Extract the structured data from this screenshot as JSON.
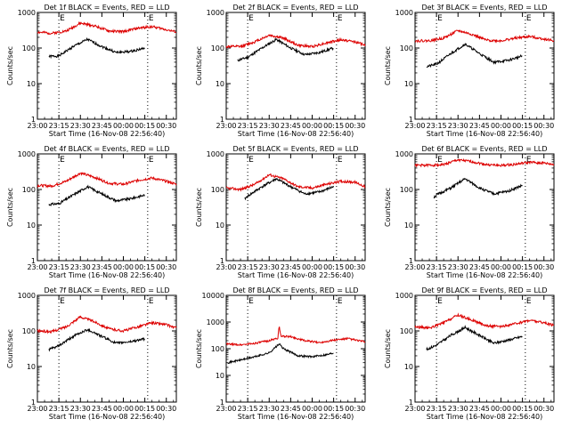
{
  "page": {
    "title_template": "Det {d}f BLACK = Events, RED = LLD",
    "ylabel": "Counts/sec",
    "xlabel": "Start Time (16-Nov-08 22:56:40)",
    "edge_markers": [
      "E",
      "E"
    ]
  },
  "colors": {
    "events": "#000000",
    "lld": "#dd0000",
    "axis": "#000000",
    "background": "#ffffff"
  },
  "chart_data": [
    {
      "type": "line",
      "detector": "1f",
      "title": "Det 1f BLACK = Events, RED = LLD",
      "xlabel": "Start Time (16-Nov-08 22:56:40)",
      "ylabel": "Counts/sec",
      "x_ticks": [
        "23:00",
        "23:15",
        "23:30",
        "23:45",
        "00:00",
        "00:15",
        "00:30"
      ],
      "y_ticks": [
        "1",
        "10",
        "100",
        "1000"
      ],
      "ylim": [
        1,
        1000
      ],
      "yscale": "log",
      "xlim": [
        "23:00",
        "00:37"
      ],
      "vlines": [
        "23:15",
        "00:17"
      ],
      "series": [
        {
          "name": "Events",
          "x": [
            "23:08",
            "23:15",
            "23:25",
            "23:35",
            "23:45",
            "23:55",
            "00:05",
            "00:15"
          ],
          "y": [
            58,
            60,
            110,
            175,
            110,
            75,
            80,
            100
          ]
        },
        {
          "name": "LLD",
          "x": [
            "23:00",
            "23:10",
            "23:20",
            "23:30",
            "23:40",
            "23:50",
            "00:00",
            "00:10",
            "00:20",
            "00:30",
            "00:37"
          ],
          "y": [
            280,
            260,
            300,
            500,
            420,
            300,
            290,
            360,
            400,
            330,
            280
          ]
        }
      ]
    },
    {
      "type": "line",
      "detector": "2f",
      "title": "Det 2f BLACK = Events, RED = LLD",
      "xlabel": "Start Time (16-Nov-08 22:56:40)",
      "ylabel": "Counts/sec",
      "x_ticks": [
        "23:00",
        "23:15",
        "23:30",
        "23:45",
        "00:00",
        "00:15",
        "00:30"
      ],
      "y_ticks": [
        "1",
        "10",
        "100",
        "1000"
      ],
      "ylim": [
        1,
        1000
      ],
      "yscale": "log",
      "xlim": [
        "23:00",
        "00:37"
      ],
      "vlines": [
        "23:15",
        "00:17"
      ],
      "series": [
        {
          "name": "Events",
          "x": [
            "23:08",
            "23:15",
            "23:25",
            "23:35",
            "23:45",
            "23:55",
            "00:05",
            "00:15"
          ],
          "y": [
            45,
            55,
            100,
            175,
            100,
            65,
            75,
            100
          ]
        },
        {
          "name": "LLD",
          "x": [
            "23:00",
            "23:10",
            "23:20",
            "23:30",
            "23:40",
            "23:50",
            "00:00",
            "00:10",
            "00:20",
            "00:30",
            "00:37"
          ],
          "y": [
            110,
            110,
            150,
            230,
            190,
            120,
            110,
            140,
            170,
            150,
            120
          ]
        }
      ]
    },
    {
      "type": "line",
      "detector": "3f",
      "title": "Det 3f BLACK = Events, RED = LLD",
      "xlabel": "Start Time (16-Nov-08 22:56:40)",
      "ylabel": "Counts/sec",
      "x_ticks": [
        "23:00",
        "23:15",
        "23:30",
        "23:45",
        "00:00",
        "00:15",
        "00:30"
      ],
      "y_ticks": [
        "1",
        "10",
        "100",
        "1000"
      ],
      "ylim": [
        1,
        1000
      ],
      "yscale": "log",
      "xlim": [
        "23:00",
        "00:37"
      ],
      "vlines": [
        "23:15",
        "00:17"
      ],
      "series": [
        {
          "name": "Events",
          "x": [
            "23:08",
            "23:15",
            "23:25",
            "23:35",
            "23:45",
            "23:55",
            "00:05",
            "00:15"
          ],
          "y": [
            30,
            35,
            70,
            130,
            70,
            40,
            45,
            60
          ]
        },
        {
          "name": "LLD",
          "x": [
            "23:00",
            "23:10",
            "23:20",
            "23:30",
            "23:40",
            "23:50",
            "00:00",
            "00:10",
            "00:20",
            "00:30",
            "00:37"
          ],
          "y": [
            160,
            160,
            190,
            310,
            240,
            165,
            160,
            190,
            210,
            180,
            160
          ]
        }
      ]
    },
    {
      "type": "line",
      "detector": "4f",
      "title": "Det 4f BLACK = Events, RED = LLD",
      "xlabel": "Start Time (16-Nov-08 22:56:40)",
      "ylabel": "Counts/sec",
      "x_ticks": [
        "23:00",
        "23:15",
        "23:30",
        "23:45",
        "00:00",
        "00:15",
        "00:30"
      ],
      "y_ticks": [
        "1",
        "10",
        "100",
        "1000"
      ],
      "ylim": [
        1,
        1000
      ],
      "yscale": "log",
      "xlim": [
        "23:00",
        "00:37"
      ],
      "vlines": [
        "23:15",
        "00:17"
      ],
      "series": [
        {
          "name": "Events",
          "x": [
            "23:08",
            "23:15",
            "23:25",
            "23:35",
            "23:45",
            "23:55",
            "00:05",
            "00:15"
          ],
          "y": [
            38,
            40,
            70,
            120,
            75,
            48,
            55,
            70
          ]
        },
        {
          "name": "LLD",
          "x": [
            "23:00",
            "23:10",
            "23:20",
            "23:30",
            "23:40",
            "23:50",
            "00:00",
            "00:10",
            "00:20",
            "00:30",
            "00:37"
          ],
          "y": [
            130,
            125,
            170,
            290,
            220,
            150,
            140,
            180,
            210,
            170,
            140
          ]
        }
      ]
    },
    {
      "type": "line",
      "detector": "5f",
      "title": "Det 5f BLACK = Events, RED = LLD",
      "xlabel": "Start Time (16-Nov-08 22:56:40)",
      "ylabel": "Counts/sec",
      "x_ticks": [
        "23:00",
        "23:15",
        "23:30",
        "23:45",
        "00:00",
        "00:15",
        "00:30"
      ],
      "y_ticks": [
        "1",
        "10",
        "100",
        "1000"
      ],
      "ylim": [
        1,
        1000
      ],
      "yscale": "log",
      "xlim": [
        "23:00",
        "00:37"
      ],
      "vlines": [
        "23:15",
        "00:17"
      ],
      "series": [
        {
          "name": "Events",
          "x": [
            "23:13",
            "23:15",
            "23:25",
            "23:35",
            "23:45",
            "23:55",
            "00:05",
            "00:15"
          ],
          "y": [
            55,
            65,
            120,
            200,
            120,
            75,
            85,
            120
          ]
        },
        {
          "name": "LLD",
          "x": [
            "23:00",
            "23:10",
            "23:20",
            "23:30",
            "23:40",
            "23:50",
            "00:00",
            "00:10",
            "00:20",
            "00:30",
            "00:37"
          ],
          "y": [
            110,
            100,
            140,
            260,
            200,
            120,
            110,
            140,
            170,
            160,
            120
          ]
        }
      ]
    },
    {
      "type": "line",
      "detector": "6f",
      "title": "Det 6f BLACK = Events, RED = LLD",
      "xlabel": "Start Time (16-Nov-08 22:56:40)",
      "ylabel": "Counts/sec",
      "x_ticks": [
        "23:00",
        "23:15",
        "23:30",
        "23:45",
        "00:00",
        "00:15",
        "00:30"
      ],
      "y_ticks": [
        "1",
        "10",
        "100",
        "1000"
      ],
      "ylim": [
        1,
        1000
      ],
      "yscale": "log",
      "xlim": [
        "23:00",
        "00:37"
      ],
      "vlines": [
        "23:15",
        "00:17"
      ],
      "series": [
        {
          "name": "Events",
          "x": [
            "23:13",
            "23:15",
            "23:25",
            "23:35",
            "23:45",
            "23:55",
            "00:05",
            "00:15"
          ],
          "y": [
            60,
            70,
            110,
            200,
            110,
            75,
            90,
            130
          ]
        },
        {
          "name": "LLD",
          "x": [
            "23:00",
            "23:10",
            "23:20",
            "23:30",
            "23:40",
            "23:50",
            "00:00",
            "00:10",
            "00:20",
            "00:30",
            "00:37"
          ],
          "y": [
            480,
            480,
            500,
            680,
            600,
            500,
            470,
            510,
            580,
            550,
            500
          ]
        }
      ]
    },
    {
      "type": "line",
      "detector": "7f",
      "title": "Det 7f BLACK = Events, RED = LLD",
      "xlabel": "Start Time (16-Nov-08 22:56:40)",
      "ylabel": "Counts/sec",
      "x_ticks": [
        "23:00",
        "23:15",
        "23:30",
        "23:45",
        "00:00",
        "00:15",
        "00:30"
      ],
      "y_ticks": [
        "1",
        "10",
        "100",
        "1000"
      ],
      "ylim": [
        1,
        1000
      ],
      "yscale": "log",
      "xlim": [
        "23:00",
        "00:37"
      ],
      "vlines": [
        "23:15",
        "00:17"
      ],
      "series": [
        {
          "name": "Events",
          "x": [
            "23:08",
            "23:15",
            "23:25",
            "23:35",
            "23:45",
            "23:55",
            "00:05",
            "00:15"
          ],
          "y": [
            30,
            38,
            70,
            110,
            70,
            45,
            50,
            60
          ]
        },
        {
          "name": "LLD",
          "x": [
            "23:00",
            "23:10",
            "23:20",
            "23:30",
            "23:40",
            "23:50",
            "00:00",
            "00:10",
            "00:20",
            "00:30",
            "00:37"
          ],
          "y": [
            100,
            95,
            130,
            250,
            180,
            115,
            100,
            130,
            170,
            150,
            120
          ]
        }
      ]
    },
    {
      "type": "line",
      "detector": "8f",
      "title": "Det 8f BLACK = Events, RED = LLD",
      "xlabel": "Start Time (16-Nov-08 22:56:40)",
      "ylabel": "Counts/sec",
      "x_ticks": [
        "23:00",
        "23:15",
        "23:30",
        "23:45",
        "00:00",
        "00:15",
        "00:30"
      ],
      "y_ticks": [
        "1",
        "10",
        "100",
        "1000",
        "10000"
      ],
      "ylim": [
        1,
        10000
      ],
      "yscale": "log",
      "xlim": [
        "23:00",
        "00:37"
      ],
      "vlines": [
        "23:15",
        "00:17"
      ],
      "series": [
        {
          "name": "Events",
          "x": [
            "23:01",
            "23:10",
            "23:20",
            "23:30",
            "23:37",
            "23:40",
            "23:50",
            "00:00",
            "00:10",
            "00:15"
          ],
          "y": [
            30,
            38,
            50,
            70,
            150,
            100,
            55,
            50,
            60,
            70
          ]
        },
        {
          "name": "LLD",
          "x": [
            "23:00",
            "23:10",
            "23:20",
            "23:30",
            "23:36",
            "23:37",
            "23:38",
            "23:45",
            "23:55",
            "00:05",
            "00:15",
            "00:25",
            "00:37"
          ],
          "y": [
            150,
            140,
            160,
            200,
            250,
            700,
            300,
            280,
            200,
            170,
            210,
            240,
            180
          ]
        }
      ]
    },
    {
      "type": "line",
      "detector": "9f",
      "title": "Det 9f BLACK = Events, RED = LLD",
      "xlabel": "Start Time (16-Nov-08 22:56:40)",
      "ylabel": "Counts/sec",
      "x_ticks": [
        "23:00",
        "23:15",
        "23:30",
        "23:45",
        "00:00",
        "00:15",
        "00:30"
      ],
      "y_ticks": [
        "1",
        "10",
        "100",
        "1000"
      ],
      "ylim": [
        1,
        1000
      ],
      "yscale": "log",
      "xlim": [
        "23:00",
        "00:37"
      ],
      "vlines": [
        "23:15",
        "00:17"
      ],
      "series": [
        {
          "name": "Events",
          "x": [
            "23:08",
            "23:15",
            "23:25",
            "23:35",
            "23:45",
            "23:55",
            "00:05",
            "00:15"
          ],
          "y": [
            30,
            40,
            75,
            125,
            75,
            45,
            55,
            70
          ]
        },
        {
          "name": "LLD",
          "x": [
            "23:00",
            "23:10",
            "23:20",
            "23:30",
            "23:40",
            "23:50",
            "00:00",
            "00:10",
            "00:20",
            "00:30",
            "00:37"
          ],
          "y": [
            130,
            120,
            170,
            280,
            200,
            140,
            130,
            160,
            200,
            170,
            140
          ]
        }
      ]
    }
  ]
}
